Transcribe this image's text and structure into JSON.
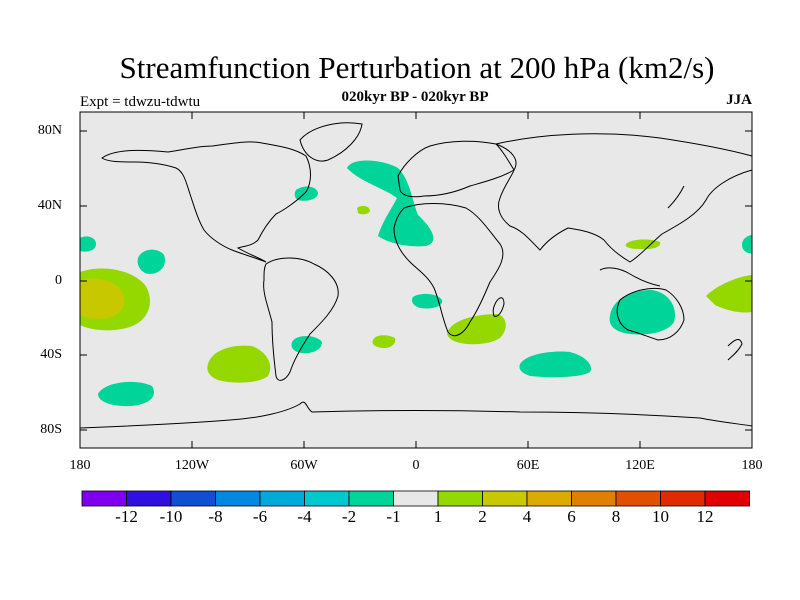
{
  "plot": {
    "title": "Streamfunction Perturbation at 200 hPa (km2/s)",
    "subtitle": "020kyr BP - 020kyr BP",
    "experiment": "Expt = tdwzu-tdwtu",
    "season": "JJA"
  },
  "axes": {
    "lat_ticks": [
      "80N",
      "40N",
      "0",
      "40S",
      "80S"
    ],
    "lon_ticks": [
      "180",
      "120W",
      "60W",
      "0",
      "60E",
      "120E",
      "180"
    ]
  },
  "colorbar": {
    "colors": [
      "#7f00ef",
      "#2f10e0",
      "#1050d0",
      "#0088e0",
      "#00aad8",
      "#00c8cf",
      "#00d498",
      "#e8e8e8",
      "#94d800",
      "#c8c800",
      "#dcaa00",
      "#e08000",
      "#e05000",
      "#e02a00",
      "#e00000"
    ],
    "labels": [
      "-12",
      "-10",
      "-8",
      "-6",
      "-4",
      "-2",
      "-1",
      "1",
      "2",
      "4",
      "6",
      "8",
      "10",
      "12"
    ]
  },
  "colors": {
    "ocean": "#e8e8e8",
    "positive_weak": "#94d800",
    "positive_mid": "#c8c800",
    "negative_weak": "#00d498"
  }
}
